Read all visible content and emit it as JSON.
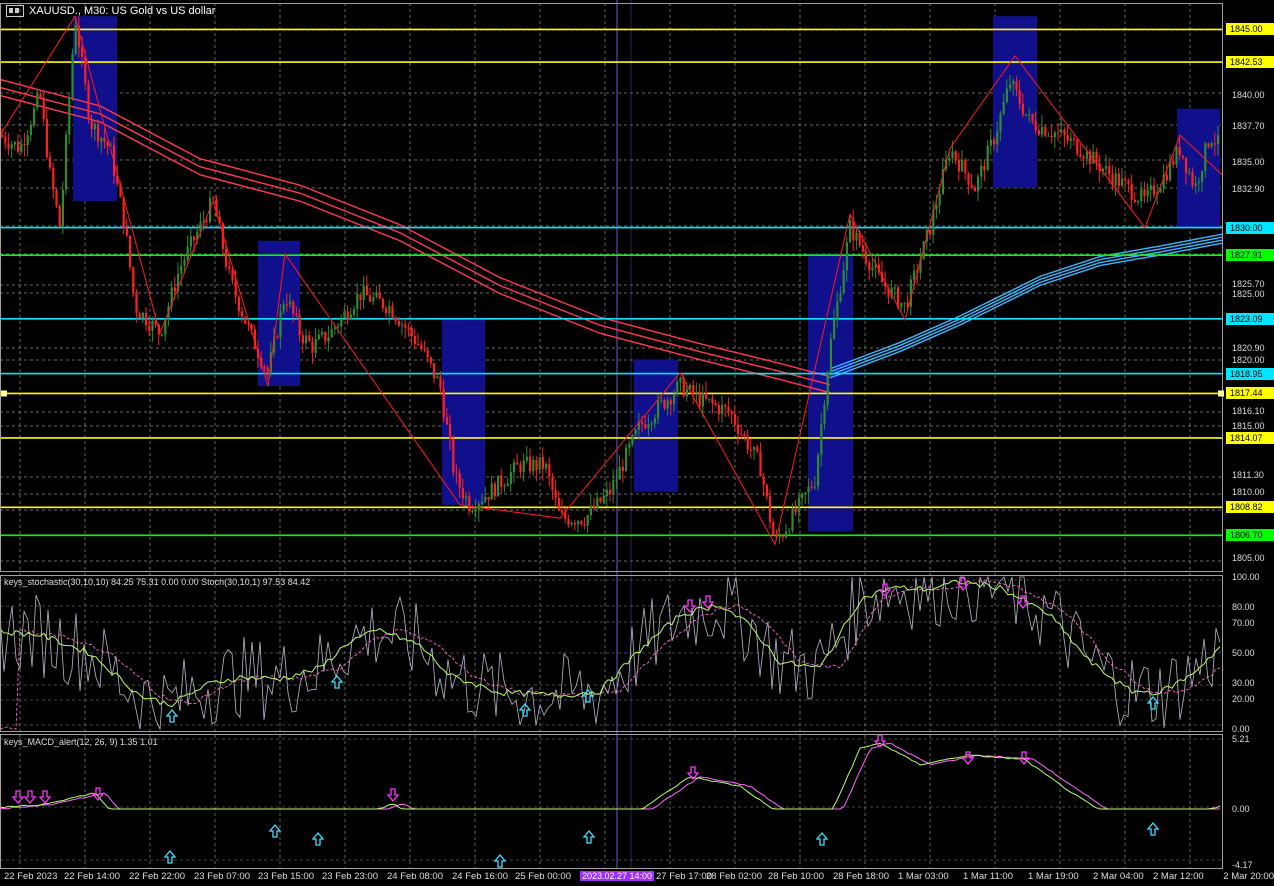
{
  "window": {
    "title": "XAUUSD., M30:  US Gold vs US dollar"
  },
  "indicators": {
    "stochastic_label": "keys_stochastic(30,10,10) 84.25 75.31 0.00 0.00 Stoch(30,10,1) 97.53 84.42",
    "macd_label": "keys_MACD_alert(12, 26, 9) 1.35 1.01"
  },
  "price_axis": {
    "ticks": [
      "1845.00",
      "1840.00",
      "1837.70",
      "1835.00",
      "1832.90",
      "1830.00",
      "1827.91",
      "1825.70",
      "1825.00",
      "1823.09",
      "1820.90",
      "1820.00",
      "1818.95",
      "1816.10",
      "1815.00",
      "1811.30",
      "1810.00",
      "1805.00"
    ],
    "levels": [
      {
        "value": "1845.00",
        "color": "#ffff00"
      },
      {
        "value": "1842.53",
        "color": "#ffff00"
      },
      {
        "value": "1830.00",
        "color": "#00e5ff"
      },
      {
        "value": "1827.91",
        "color": "#00ff00"
      },
      {
        "value": "1823.09",
        "color": "#00e5ff"
      },
      {
        "value": "1818.95",
        "color": "#00e5ff"
      },
      {
        "value": "1817.44",
        "color": "#ffff00"
      },
      {
        "value": "1814.07",
        "color": "#ffff00"
      },
      {
        "value": "1808.82",
        "color": "#ffff00"
      },
      {
        "value": "1806.70",
        "color": "#00ff00"
      }
    ]
  },
  "stoch_axis": [
    "100.00",
    "80.00",
    "70.00",
    "50.00",
    "30.00",
    "20.00",
    "0.00"
  ],
  "macd_axis": [
    "5.21",
    "0.00",
    "-4.17"
  ],
  "time_axis": [
    "22 Feb 2023",
    "22 Feb 14:00",
    "22 Feb 22:00",
    "23 Feb 07:00",
    "23 Feb 15:00",
    "23 Feb 23:00",
    "24 Feb 08:00",
    "24 Feb 16:00",
    "25 Feb 00:00",
    "2023.02.27 14:00",
    "27 Feb 17:00",
    "28 Feb 02:00",
    "28 Feb 10:00",
    "28 Feb 18:00",
    "1 Mar 03:00",
    "1 Mar 11:00",
    "1 Mar 19:00",
    "2 Mar 04:00",
    "2 Mar 12:00",
    "2 Mar 20:00"
  ],
  "colors": {
    "bull": "#2e8b2e",
    "bear": "#ff2020",
    "box": "#10108c",
    "ma_red": "#ff3a50",
    "ma_blue": "#3ab8ff",
    "grid": "#8c8c8c",
    "crosshair": "#6a5acd"
  },
  "chart_data": {
    "type": "candlestick",
    "symbol": "XAUUSD.",
    "timeframe": "M30",
    "ylim": [
      1804.0,
      1847.0
    ],
    "path": [
      [
        0,
        1837
      ],
      [
        20,
        1836
      ],
      [
        40,
        1840
      ],
      [
        50,
        1834
      ],
      [
        60,
        1830
      ],
      [
        75,
        1846
      ],
      [
        90,
        1838
      ],
      [
        110,
        1836
      ],
      [
        125,
        1830
      ],
      [
        135,
        1824
      ],
      [
        160,
        1822
      ],
      [
        180,
        1827
      ],
      [
        213,
        1832
      ],
      [
        230,
        1826
      ],
      [
        250,
        1822
      ],
      [
        268,
        1819
      ],
      [
        285,
        1825
      ],
      [
        300,
        1822
      ],
      [
        312,
        1821
      ],
      [
        330,
        1822
      ],
      [
        360,
        1825
      ],
      [
        390,
        1824
      ],
      [
        420,
        1821
      ],
      [
        440,
        1818
      ],
      [
        455,
        1811
      ],
      [
        470,
        1809
      ],
      [
        490,
        1810
      ],
      [
        520,
        1812
      ],
      [
        545,
        1812
      ],
      [
        560,
        1808
      ],
      [
        585,
        1808
      ],
      [
        610,
        1810
      ],
      [
        640,
        1815
      ],
      [
        680,
        1818
      ],
      [
        700,
        1817
      ],
      [
        730,
        1816
      ],
      [
        760,
        1812
      ],
      [
        775,
        1806
      ],
      [
        800,
        1809
      ],
      [
        815,
        1811
      ],
      [
        830,
        1821
      ],
      [
        850,
        1830
      ],
      [
        880,
        1826
      ],
      [
        905,
        1824
      ],
      [
        930,
        1830
      ],
      [
        950,
        1836
      ],
      [
        975,
        1833
      ],
      [
        995,
        1837
      ],
      [
        1010,
        1841
      ],
      [
        1030,
        1838
      ],
      [
        1060,
        1837
      ],
      [
        1080,
        1836
      ],
      [
        1110,
        1834
      ],
      [
        1145,
        1832
      ],
      [
        1165,
        1834
      ],
      [
        1180,
        1836
      ],
      [
        1195,
        1833
      ],
      [
        1210,
        1837
      ],
      [
        1222,
        1836
      ]
    ],
    "zigzag": [
      [
        0,
        1837
      ],
      [
        75,
        1846
      ],
      [
        160,
        1822
      ],
      [
        213,
        1832
      ],
      [
        268,
        1818
      ],
      [
        285,
        1828
      ],
      [
        460,
        1809
      ],
      [
        560,
        1808
      ],
      [
        680,
        1819
      ],
      [
        775,
        1806
      ],
      [
        850,
        1831
      ],
      [
        905,
        1823
      ],
      [
        950,
        1836
      ],
      [
        1015,
        1843
      ],
      [
        1145,
        1830
      ],
      [
        1180,
        1837
      ],
      [
        1222,
        1834
      ]
    ],
    "boxes": [
      [
        73,
        117,
        1846,
        1832
      ],
      [
        258,
        300,
        1829,
        1818
      ],
      [
        442,
        485,
        1823,
        1809
      ],
      [
        634,
        678,
        1820,
        1810
      ],
      [
        808,
        853,
        1828,
        1807
      ],
      [
        993,
        1037,
        1846,
        1833
      ],
      [
        1177,
        1220,
        1839,
        1830
      ]
    ]
  }
}
